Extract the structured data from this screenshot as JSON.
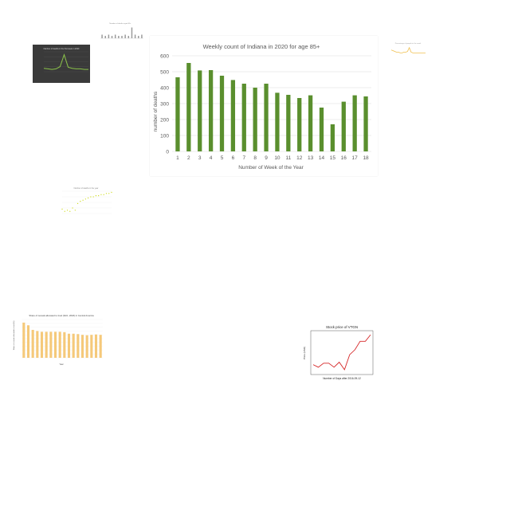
{
  "chart_data": [
    {
      "id": "main",
      "type": "bar",
      "title": "Weekly count of  Indiana in 2020 for age 85+",
      "xlabel": "Number of Week of the Year",
      "ylabel": "number of deaths",
      "categories": [
        "1",
        "2",
        "3",
        "4",
        "5",
        "6",
        "7",
        "8",
        "9",
        "10",
        "11",
        "12",
        "13",
        "14",
        "15",
        "16",
        "17",
        "18"
      ],
      "values": [
        465,
        555,
        508,
        510,
        475,
        448,
        425,
        400,
        425,
        368,
        355,
        335,
        352,
        275,
        170,
        312,
        352,
        345
      ],
      "ylim": [
        0,
        600
      ],
      "yticks": [
        0,
        100,
        200,
        300,
        400,
        500,
        600
      ],
      "grid": true,
      "color": "#5a8f2e"
    },
    {
      "id": "dark-line",
      "type": "line",
      "title": "Number of deaths in the first week in 2020",
      "x": [
        1,
        2,
        3,
        4,
        5,
        6,
        7,
        8,
        9,
        10,
        11,
        12
      ],
      "values": [
        6,
        5,
        4,
        5,
        9,
        30,
        8,
        6,
        5,
        5,
        4,
        4
      ],
      "ylim": [
        0,
        35
      ],
      "grid": true,
      "color": "#8bc34a"
    },
    {
      "id": "top-tiny-bar",
      "type": "bar",
      "title": "Number of deaths aged 65+",
      "values": [
        3,
        2,
        3,
        2,
        3,
        2,
        2,
        3,
        2,
        9,
        3,
        2,
        3
      ],
      "ylim": [
        0,
        10
      ],
      "color": "#999999"
    },
    {
      "id": "top-right-line",
      "type": "line",
      "title": "Percentage of people in the week",
      "x": [
        1,
        2,
        3,
        4,
        5,
        6,
        7,
        8,
        9,
        10,
        11,
        12,
        13,
        14,
        15,
        16,
        17,
        18,
        19,
        20
      ],
      "values": [
        12,
        11,
        10,
        9,
        9,
        8,
        8,
        9,
        9,
        10,
        15,
        9,
        8,
        8,
        8,
        8,
        8,
        8,
        8,
        8
      ],
      "ylim": [
        0,
        18
      ],
      "color": "#f0c050"
    },
    {
      "id": "mid-scatter",
      "type": "scatter",
      "title": "Number of deaths in the year",
      "x": [
        1,
        2,
        3,
        4,
        5,
        6,
        7,
        8,
        9,
        10,
        11,
        12,
        13,
        14,
        15,
        16,
        17,
        18,
        19,
        20
      ],
      "values": [
        4,
        2,
        3,
        2,
        5,
        3,
        9,
        11,
        12,
        13,
        14,
        15,
        15,
        16,
        16,
        17,
        17,
        18,
        18,
        19
      ],
      "ylim": [
        0,
        20
      ],
      "grid": true,
      "color": "#c8d800"
    },
    {
      "id": "food-bar",
      "type": "bar",
      "title": "Share of cereals allocated to food (FAO, 2018) in Central America",
      "xlabel": "Year",
      "ylabel": "Share of cereals allocated to food (%)",
      "values": [
        92,
        85,
        73,
        70,
        68,
        68,
        68,
        68,
        68,
        67,
        63,
        63,
        62,
        60,
        59,
        60,
        61,
        60
      ],
      "ylim": [
        0,
        100
      ],
      "grid": true,
      "color": "#f5c97a"
    },
    {
      "id": "stock-line",
      "type": "line",
      "title": "Stock price of VTGN",
      "xlabel": "Number of Days after 2016-09-12",
      "ylabel": "Price (USD)",
      "x": [
        0,
        1,
        2,
        3,
        4,
        5,
        6,
        7,
        8,
        9,
        10,
        11
      ],
      "values": [
        2.5,
        2.0,
        2.8,
        2.8,
        2.0,
        3.0,
        1.5,
        4.5,
        5.5,
        7.2,
        7.2,
        8.5
      ],
      "ylim": [
        1,
        9
      ],
      "color": "#d62728"
    }
  ]
}
